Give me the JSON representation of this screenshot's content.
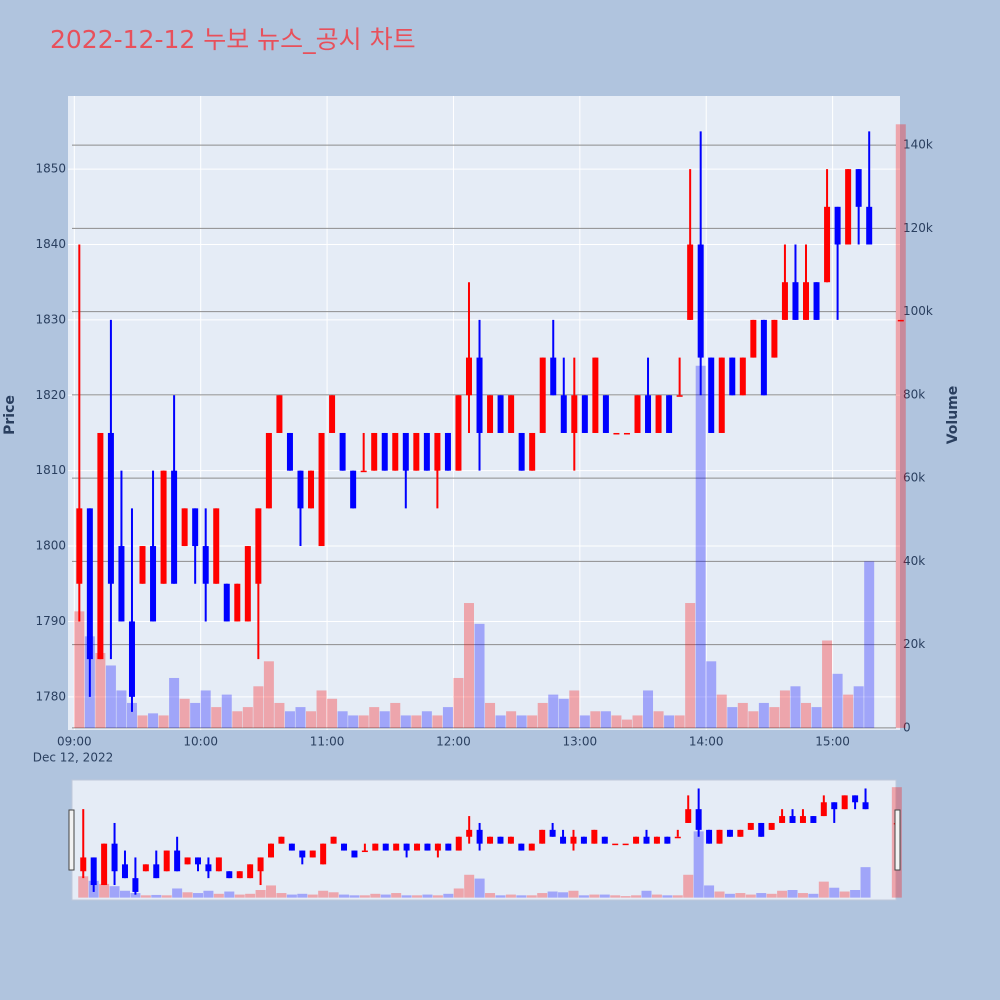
{
  "chart_data": {
    "type": "candlestick",
    "title": "2022-12-12 누보 뉴스_공시 차트",
    "ylabel": "Price",
    "y2label": "Volume",
    "x_date_label": "Dec 12, 2022",
    "increasing_color": "#ff0000",
    "decreasing_color": "#0000ff",
    "grid": true,
    "rangeslider": true,
    "x": [
      "2022-12-12 09:00",
      "2022-12-12 09:05",
      "2022-12-12 09:10",
      "2022-12-12 09:15",
      "2022-12-12 09:20",
      "2022-12-12 09:25",
      "2022-12-12 09:30",
      "2022-12-12 09:35",
      "2022-12-12 09:40",
      "2022-12-12 09:45",
      "2022-12-12 09:50",
      "2022-12-12 09:55",
      "2022-12-12 10:00",
      "2022-12-12 10:05",
      "2022-12-12 10:10",
      "2022-12-12 10:15",
      "2022-12-12 10:20",
      "2022-12-12 10:25",
      "2022-12-12 10:30",
      "2022-12-12 10:35",
      "2022-12-12 10:40",
      "2022-12-12 10:45",
      "2022-12-12 10:50",
      "2022-12-12 10:55",
      "2022-12-12 11:00",
      "2022-12-12 11:05",
      "2022-12-12 11:10",
      "2022-12-12 11:15",
      "2022-12-12 11:20",
      "2022-12-12 11:25",
      "2022-12-12 11:30",
      "2022-12-12 11:35",
      "2022-12-12 11:40",
      "2022-12-12 11:45",
      "2022-12-12 11:50",
      "2022-12-12 11:55",
      "2022-12-12 12:00",
      "2022-12-12 12:05",
      "2022-12-12 12:10",
      "2022-12-12 12:15",
      "2022-12-12 12:20",
      "2022-12-12 12:25",
      "2022-12-12 12:30",
      "2022-12-12 12:35",
      "2022-12-12 12:40",
      "2022-12-12 12:45",
      "2022-12-12 12:50",
      "2022-12-12 12:55",
      "2022-12-12 13:00",
      "2022-12-12 13:05",
      "2022-12-12 13:10",
      "2022-12-12 13:15",
      "2022-12-12 13:20",
      "2022-12-12 13:25",
      "2022-12-12 13:30",
      "2022-12-12 13:35",
      "2022-12-12 13:40",
      "2022-12-12 13:45",
      "2022-12-12 13:50",
      "2022-12-12 13:55",
      "2022-12-12 14:00",
      "2022-12-12 14:05",
      "2022-12-12 14:10",
      "2022-12-12 14:15",
      "2022-12-12 14:20",
      "2022-12-12 14:25",
      "2022-12-12 14:30",
      "2022-12-12 14:35",
      "2022-12-12 14:40",
      "2022-12-12 14:45",
      "2022-12-12 14:50",
      "2022-12-12 14:55",
      "2022-12-12 15:00",
      "2022-12-12 15:05",
      "2022-12-12 15:10",
      "2022-12-12 15:15",
      "2022-12-12 15:30"
    ],
    "open": [
      1795,
      1805,
      1785,
      1815,
      1800,
      1790,
      1795,
      1800,
      1795,
      1810,
      1800,
      1805,
      1800,
      1795,
      1795,
      1790,
      1790,
      1795,
      1805,
      1815,
      1815,
      1810,
      1805,
      1800,
      1815,
      1815,
      1810,
      1810,
      1810,
      1815,
      1810,
      1815,
      1810,
      1815,
      1810,
      1815,
      1810,
      1820,
      1825,
      1815,
      1820,
      1815,
      1815,
      1810,
      1815,
      1825,
      1820,
      1815,
      1820,
      1815,
      1820,
      1815,
      1815,
      1815,
      1820,
      1815,
      1820,
      1820,
      1830,
      1840,
      1825,
      1815,
      1825,
      1820,
      1825,
      1830,
      1825,
      1830,
      1835,
      1830,
      1835,
      1835,
      1845,
      1840,
      1850,
      1845,
      1830
    ],
    "high": [
      1840,
      1805,
      1815,
      1830,
      1810,
      1805,
      1800,
      1810,
      1810,
      1820,
      1805,
      1805,
      1805,
      1805,
      1795,
      1795,
      1800,
      1805,
      1815,
      1820,
      1815,
      1810,
      1810,
      1815,
      1820,
      1815,
      1810,
      1815,
      1815,
      1815,
      1815,
      1815,
      1815,
      1815,
      1815,
      1815,
      1820,
      1835,
      1830,
      1820,
      1820,
      1820,
      1815,
      1815,
      1825,
      1830,
      1825,
      1825,
      1820,
      1825,
      1820,
      1815,
      1815,
      1820,
      1825,
      1820,
      1820,
      1825,
      1850,
      1855,
      1825,
      1825,
      1825,
      1825,
      1830,
      1830,
      1830,
      1840,
      1840,
      1840,
      1835,
      1850,
      1845,
      1850,
      1850,
      1855,
      1830
    ],
    "low": [
      1790,
      1780,
      1785,
      1785,
      1790,
      1778,
      1795,
      1790,
      1795,
      1795,
      1800,
      1795,
      1790,
      1795,
      1790,
      1790,
      1790,
      1785,
      1805,
      1815,
      1810,
      1800,
      1805,
      1800,
      1815,
      1810,
      1805,
      1810,
      1810,
      1810,
      1810,
      1805,
      1810,
      1810,
      1805,
      1810,
      1810,
      1815,
      1810,
      1815,
      1815,
      1815,
      1810,
      1810,
      1815,
      1820,
      1815,
      1810,
      1815,
      1815,
      1815,
      1815,
      1815,
      1815,
      1815,
      1815,
      1815,
      1820,
      1830,
      1820,
      1815,
      1815,
      1820,
      1820,
      1825,
      1820,
      1825,
      1830,
      1830,
      1830,
      1830,
      1835,
      1830,
      1840,
      1840,
      1840,
      1830
    ],
    "close": [
      1805,
      1785,
      1815,
      1795,
      1790,
      1780,
      1800,
      1790,
      1810,
      1795,
      1805,
      1800,
      1795,
      1805,
      1790,
      1795,
      1800,
      1805,
      1815,
      1820,
      1810,
      1805,
      1810,
      1815,
      1820,
      1810,
      1805,
      1810,
      1815,
      1810,
      1815,
      1810,
      1815,
      1810,
      1815,
      1810,
      1820,
      1825,
      1815,
      1820,
      1815,
      1820,
      1810,
      1815,
      1825,
      1820,
      1815,
      1820,
      1815,
      1825,
      1815,
      1815,
      1815,
      1820,
      1815,
      1820,
      1815,
      1820,
      1840,
      1825,
      1815,
      1825,
      1820,
      1825,
      1830,
      1820,
      1830,
      1835,
      1830,
      1835,
      1830,
      1845,
      1840,
      1850,
      1845,
      1840,
      1830
    ],
    "volume": [
      28000,
      22000,
      18000,
      15000,
      9000,
      6000,
      3000,
      3500,
      3000,
      12000,
      7000,
      6000,
      9000,
      5000,
      8000,
      4000,
      5000,
      10000,
      16000,
      6000,
      4000,
      5000,
      4000,
      9000,
      7000,
      4000,
      3000,
      3000,
      5000,
      4000,
      6000,
      3000,
      3000,
      4000,
      3000,
      5000,
      12000,
      30000,
      25000,
      6000,
      3000,
      4000,
      3000,
      3000,
      6000,
      8000,
      7000,
      9000,
      3000,
      4000,
      4000,
      3000,
      2000,
      3000,
      9000,
      4000,
      3000,
      3000,
      30000,
      87000,
      16000,
      8000,
      5000,
      6000,
      4000,
      6000,
      5000,
      9000,
      10000,
      6000,
      5000,
      21000,
      13000,
      8000,
      10000,
      40000,
      145000
    ],
    "xlim": [
      "2022-12-12 08:57",
      "2022-12-12 15:32"
    ],
    "xticks": [
      {
        "value": "2022-12-12 09:00",
        "label": "09:00"
      },
      {
        "value": "2022-12-12 10:00",
        "label": "10:00"
      },
      {
        "value": "2022-12-12 11:00",
        "label": "11:00"
      },
      {
        "value": "2022-12-12 12:00",
        "label": "12:00"
      },
      {
        "value": "2022-12-12 13:00",
        "label": "13:00"
      },
      {
        "value": "2022-12-12 14:00",
        "label": "14:00"
      },
      {
        "value": "2022-12-12 15:00",
        "label": "15:00"
      }
    ],
    "ylim": [
      1775.6,
      1859.7
    ],
    "yticks": [
      1780,
      1790,
      1800,
      1810,
      1820,
      1830,
      1840,
      1850
    ],
    "y2lim": [
      -500,
      151800
    ],
    "y2ticks": [
      0,
      {
        "value": 20000,
        "label": "20k"
      },
      {
        "value": 40000,
        "label": "40k"
      },
      {
        "value": 60000,
        "label": "60k"
      },
      {
        "value": 80000,
        "label": "80k"
      },
      {
        "value": 100000,
        "label": "100k"
      },
      {
        "value": 120000,
        "label": "120k"
      },
      {
        "value": 140000,
        "label": "140k"
      }
    ]
  }
}
